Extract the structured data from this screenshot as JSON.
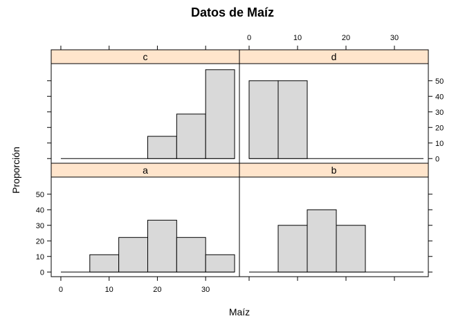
{
  "chart_data": {
    "type": "bar",
    "title": "Datos de Maíz",
    "xlabel": "Maíz",
    "ylabel": "Proporción",
    "xlim": [
      -2,
      37
    ],
    "ylim": [
      -3,
      61
    ],
    "x_ticks": [
      0,
      10,
      20,
      30
    ],
    "y_ticks": [
      0,
      10,
      20,
      30,
      40,
      50
    ],
    "bin_edges": [
      0,
      6,
      12,
      18,
      24,
      30,
      36
    ],
    "panels": [
      {
        "label": "a",
        "values": [
          0,
          11.1,
          22.2,
          33.3,
          22.2,
          11.1
        ]
      },
      {
        "label": "b",
        "values": [
          0,
          30,
          40,
          30,
          0,
          0
        ]
      },
      {
        "label": "c",
        "values": [
          0,
          0,
          0,
          14.3,
          28.6,
          57.1
        ]
      },
      {
        "label": "d",
        "values": [
          50,
          50,
          0,
          0,
          0,
          0
        ]
      }
    ],
    "strip_color": "#ffe5cc",
    "bar_color": "#d9d9d9",
    "grid": false,
    "legend": "none"
  }
}
